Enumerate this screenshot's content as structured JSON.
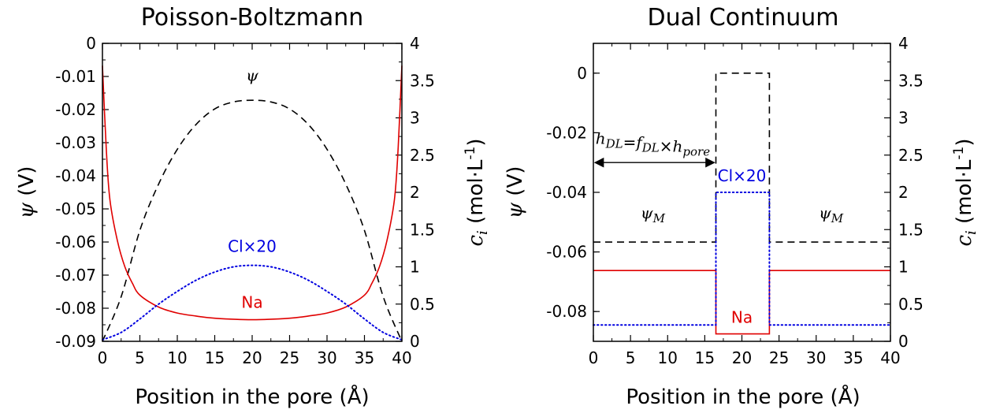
{
  "chart_data": [
    {
      "type": "line",
      "title": "Poisson-Boltzmann",
      "xlabel": "Position in the pore (Å)",
      "ylabel": "ψ (V)",
      "ylabel_right": "c_i (mol·L⁻¹)",
      "xlim": [
        0,
        40
      ],
      "ylim": [
        -0.09,
        0
      ],
      "ylim_right": [
        0,
        4
      ],
      "xticks": [
        "0",
        "5",
        "10",
        "15",
        "20",
        "25",
        "30",
        "35",
        "40"
      ],
      "yticks": [
        "0",
        "-0.01",
        "-0.02",
        "-0.03",
        "-0.04",
        "-0.05",
        "-0.06",
        "-0.07",
        "-0.08",
        "-0.09"
      ],
      "yticks_right": [
        "0",
        "0.5",
        "1",
        "1.5",
        "2",
        "2.5",
        "3",
        "3.5",
        "4"
      ],
      "grid": false,
      "series": [
        {
          "name": "ψ",
          "axis": "left",
          "style": "dashed",
          "color": "#000000",
          "x": [
            0,
            2.5,
            5,
            7.5,
            10,
            12.5,
            15,
            17.5,
            20,
            22.5,
            25,
            27.5,
            30,
            32.5,
            35,
            37.5,
            40
          ],
          "y": [
            -0.09,
            -0.0765,
            -0.0565,
            -0.0425,
            -0.032,
            -0.0245,
            -0.0198,
            -0.0177,
            -0.0172,
            -0.0177,
            -0.0198,
            -0.0245,
            -0.032,
            -0.0425,
            -0.0565,
            -0.0765,
            -0.09
          ]
        },
        {
          "name": "Na",
          "axis": "right",
          "style": "solid",
          "color": "#e00000",
          "x": [
            0,
            0.5,
            1,
            2,
            3,
            4,
            5,
            7.5,
            10,
            12.5,
            15,
            20,
            25,
            27.5,
            30,
            32.5,
            35,
            36,
            37,
            38,
            39,
            39.5,
            40
          ],
          "y": [
            3.7,
            2.6,
            1.9,
            1.35,
            1.0,
            0.78,
            0.62,
            0.46,
            0.38,
            0.34,
            0.31,
            0.29,
            0.31,
            0.34,
            0.38,
            0.46,
            0.62,
            0.78,
            1.0,
            1.35,
            1.9,
            2.6,
            3.7
          ]
        },
        {
          "name": "Cl×20",
          "axis": "right",
          "style": "dotted",
          "color": "#0000e0",
          "x": [
            0,
            2.5,
            5,
            7.5,
            10,
            12.5,
            15,
            17.5,
            20,
            22.5,
            25,
            27.5,
            30,
            32.5,
            35,
            37.5,
            40
          ],
          "y": [
            0.02,
            0.12,
            0.3,
            0.5,
            0.67,
            0.82,
            0.93,
            1.0,
            1.02,
            1.0,
            0.93,
            0.82,
            0.67,
            0.5,
            0.3,
            0.12,
            0.02
          ]
        }
      ],
      "annotations": [
        {
          "text": "ψ",
          "x": 20,
          "y": 3.5,
          "axis": "right",
          "color": "#000000"
        },
        {
          "text": "Cl×20",
          "x": 20,
          "y": 1.2,
          "axis": "right",
          "color": "#0000e0"
        },
        {
          "text": "Na",
          "x": 20,
          "y": 0.45,
          "axis": "right",
          "color": "#e00000"
        }
      ]
    },
    {
      "type": "line",
      "title": "Dual Continuum",
      "xlabel": "Position in the pore (Å)",
      "ylabel": "ψ (V)",
      "ylabel_right": "c_i (mol·L⁻¹)",
      "xlim": [
        0,
        40
      ],
      "ylim": [
        -0.09,
        0.01
      ],
      "ylim_right": [
        0,
        4
      ],
      "xticks": [
        "0",
        "5",
        "10",
        "15",
        "20",
        "25",
        "30",
        "35",
        "40"
      ],
      "yticks": [
        "0",
        "-0.02",
        "-0.04",
        "-0.06",
        "-0.08"
      ],
      "yticks_right": [
        "0",
        "0.5",
        "1",
        "1.5",
        "2",
        "2.5",
        "3",
        "3.5",
        "4"
      ],
      "grid": false,
      "series": [
        {
          "name": "ψ",
          "axis": "left",
          "style": "dashed",
          "color": "#000000",
          "x": [
            0,
            16.5,
            16.5,
            23.7,
            23.7,
            40
          ],
          "y": [
            -0.0567,
            -0.0567,
            0,
            0,
            -0.0567,
            -0.0567
          ]
        },
        {
          "name": "Na",
          "axis": "right",
          "style": "solid",
          "color": "#e00000",
          "x": [
            0,
            16.5,
            16.5,
            23.7,
            23.7,
            40
          ],
          "y": [
            0.95,
            0.95,
            0.1,
            0.1,
            0.95,
            0.95
          ]
        },
        {
          "name": "Cl×20",
          "axis": "right",
          "style": "dotted",
          "color": "#0000e0",
          "x": [
            0,
            16.5,
            16.5,
            23.7,
            23.7,
            40
          ],
          "y": [
            0.22,
            0.22,
            2.0,
            2.0,
            0.22,
            0.22
          ]
        }
      ],
      "annotations": [
        {
          "text": "ψ_M",
          "x": 8,
          "y": 1.65,
          "axis": "right",
          "color": "#000000"
        },
        {
          "text": "ψ_M",
          "x": 32,
          "y": 1.65,
          "axis": "right",
          "color": "#000000"
        },
        {
          "text": "Cl×20",
          "x": 20,
          "y": 2.15,
          "axis": "right",
          "color": "#0000e0"
        },
        {
          "text": "Na",
          "x": 20,
          "y": 0.25,
          "axis": "right",
          "color": "#e00000"
        },
        {
          "text": "h_DL=f_DL×h_pore",
          "x": 8,
          "y": 2.65,
          "axis": "right",
          "color": "#000000"
        }
      ],
      "arrow": {
        "x_from": 0,
        "x_to": 16.5,
        "y": -0.03,
        "axis": "left"
      }
    }
  ]
}
